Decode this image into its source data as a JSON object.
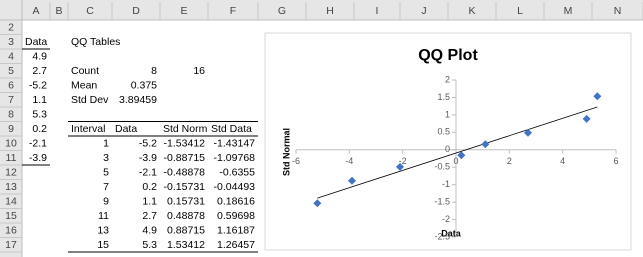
{
  "spreadsheet": {
    "column_headers": [
      "A",
      "B",
      "C",
      "D",
      "E",
      "F",
      "G",
      "H",
      "I",
      "J",
      "K",
      "L",
      "M",
      "N"
    ],
    "row_numbers": [
      "2",
      "3",
      "4",
      "5",
      "6",
      "7",
      "8",
      "9",
      "10",
      "11",
      "12",
      "13",
      "14",
      "15",
      "16",
      "17"
    ],
    "cells": [
      [
        null,
        null,
        null,
        null,
        null,
        null
      ],
      [
        "Data",
        null,
        "QQ Tables",
        null,
        null,
        null
      ],
      [
        "4.9",
        null,
        null,
        null,
        null,
        null
      ],
      [
        "2.7",
        null,
        "Count",
        "8",
        "16",
        null
      ],
      [
        "-5.2",
        null,
        "Mean",
        "0.375",
        null,
        null
      ],
      [
        "1.1",
        null,
        "Std Dev",
        "3.89459",
        null,
        null
      ],
      [
        "5.3",
        null,
        null,
        null,
        null,
        null
      ],
      [
        "0.2",
        null,
        "Interval",
        "Data",
        "Std Norm",
        "Std Data"
      ],
      [
        "-2.1",
        null,
        "1",
        "-5.2",
        "-1.53412",
        "-1.43147"
      ],
      [
        "-3.9",
        null,
        "3",
        "-3.9",
        "-0.88715",
        "-1.09768"
      ],
      [
        null,
        null,
        "5",
        "-2.1",
        "-0.48878",
        "-0.6355"
      ],
      [
        null,
        null,
        "7",
        "0.2",
        "-0.15731",
        "-0.04493"
      ],
      [
        null,
        null,
        "9",
        "1.1",
        "0.15731",
        "0.18616"
      ],
      [
        null,
        null,
        "11",
        "2.7",
        "0.48878",
        "0.59698"
      ],
      [
        null,
        null,
        "13",
        "4.9",
        "0.88715",
        "1.16187"
      ],
      [
        null,
        null,
        "15",
        "5.3",
        "1.53412",
        "1.26457"
      ]
    ]
  },
  "chart_data": {
    "type": "scatter",
    "title": "QQ Plot",
    "x_label": "Data",
    "y_label": "Std Normal",
    "x": [
      -5.2,
      -3.9,
      -2.1,
      0.2,
      1.1,
      2.7,
      4.9,
      5.3
    ],
    "series": [
      {
        "name": "Std Norm",
        "color": "#4472c4",
        "values": [
          -1.53412,
          -0.88715,
          -0.48878,
          -0.15731,
          0.15731,
          0.48878,
          0.88715,
          1.53412
        ]
      }
    ],
    "trendline": true,
    "xlim": [
      -6,
      6
    ],
    "xticks": [
      -6,
      -4,
      -2,
      0,
      2,
      4,
      6
    ],
    "ylim": [
      -2.5,
      2
    ],
    "yticks": [
      -2.5,
      -2,
      -1.5,
      -1,
      -0.5,
      0,
      0.5,
      1,
      1.5,
      2
    ]
  }
}
